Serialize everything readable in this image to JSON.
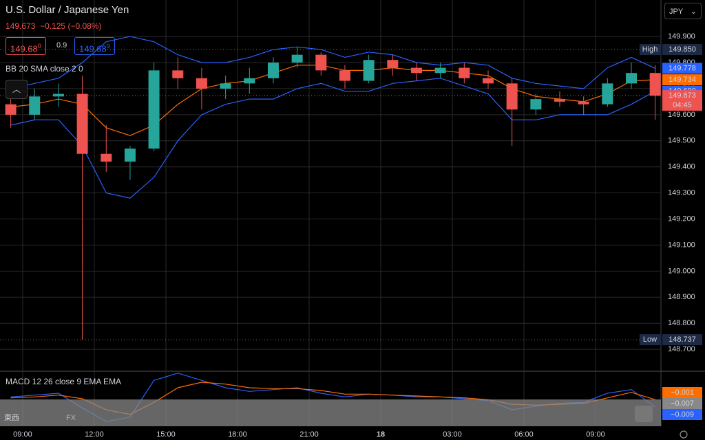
{
  "chart_data": {
    "type": "candlestick",
    "title": "U.S. Dollar / Japanese Yen",
    "quote": {
      "last": "149.673",
      "change": "−0.125",
      "change_pct": "(−0.08%)"
    },
    "sell": {
      "price": "149.68",
      "pip": "0"
    },
    "spread": "0.9",
    "buy": {
      "price": "149.68",
      "pip": "9"
    },
    "currency": "JPY",
    "countdown": "04:45",
    "up_color": "#26a69a",
    "down_color": "#ef5350",
    "grid": true,
    "xlim": [
      -0.95,
      26.74
    ],
    "xticks": [
      {
        "value": 0,
        "label": "09:00"
      },
      {
        "value": 3,
        "label": "12:00"
      },
      {
        "value": 6,
        "label": "15:00"
      },
      {
        "value": 9,
        "label": "18:00"
      },
      {
        "value": 12,
        "label": "21:00"
      },
      {
        "value": 15,
        "label": "18"
      },
      {
        "value": 18,
        "label": "03:00"
      },
      {
        "value": 21,
        "label": "06:00"
      },
      {
        "value": 24,
        "label": "09:00"
      }
    ],
    "ylim": [
      148.616,
      150.04
    ],
    "yticks": [
      {
        "value": 149.9,
        "label": "149.900"
      },
      {
        "value": 149.8,
        "label": "149.800"
      },
      {
        "value": 149.7,
        "label": "149.700"
      },
      {
        "value": 149.6,
        "label": "149.600"
      },
      {
        "value": 149.5,
        "label": "149.500"
      },
      {
        "value": 149.4,
        "label": "149.400"
      },
      {
        "value": 149.3,
        "label": "149.300"
      },
      {
        "value": 149.2,
        "label": "149.200"
      },
      {
        "value": 149.1,
        "label": "149.100"
      },
      {
        "value": 149.0,
        "label": "149.000"
      },
      {
        "value": 148.9,
        "label": "148.900"
      },
      {
        "value": 148.8,
        "label": "148.800"
      },
      {
        "value": 148.7,
        "label": "148.700"
      }
    ],
    "candles": {
      "x": [
        -0.5,
        0.5,
        1.5,
        2.5,
        3.5,
        4.5,
        5.5,
        6.5,
        7.5,
        8.5,
        9.5,
        10.5,
        11.5,
        12.5,
        13.5,
        14.5,
        15.5,
        16.5,
        17.5,
        18.5,
        19.5,
        20.5,
        21.5,
        22.5,
        23.5,
        24.5,
        25.5,
        26.5
      ],
      "open": [
        149.64,
        149.6,
        149.67,
        149.68,
        149.45,
        149.42,
        149.47,
        149.77,
        149.74,
        149.7,
        149.72,
        149.74,
        149.8,
        149.83,
        149.77,
        149.73,
        149.81,
        149.78,
        149.76,
        149.78,
        149.74,
        149.72,
        149.62,
        149.66,
        149.65,
        149.64,
        149.72,
        149.76
      ],
      "high": [
        149.66,
        149.7,
        149.72,
        149.75,
        149.56,
        149.48,
        149.8,
        149.82,
        149.78,
        149.75,
        149.78,
        149.82,
        149.86,
        149.84,
        149.79,
        149.83,
        149.83,
        149.8,
        149.8,
        149.8,
        149.77,
        149.74,
        149.68,
        149.69,
        149.67,
        149.74,
        149.8,
        149.79
      ],
      "low": [
        149.55,
        149.58,
        149.63,
        148.737,
        149.38,
        149.35,
        149.46,
        149.7,
        149.62,
        149.66,
        149.68,
        149.72,
        149.78,
        149.75,
        149.7,
        149.72,
        149.75,
        149.73,
        149.74,
        149.72,
        149.7,
        149.48,
        149.6,
        149.63,
        149.6,
        149.63,
        149.7,
        149.58
      ],
      "close": [
        149.6,
        149.67,
        149.68,
        149.45,
        149.42,
        149.47,
        149.77,
        149.74,
        149.7,
        149.72,
        149.74,
        149.8,
        149.83,
        149.77,
        149.73,
        149.81,
        149.78,
        149.76,
        149.78,
        149.74,
        149.72,
        149.62,
        149.66,
        149.65,
        149.64,
        149.72,
        149.76,
        149.673
      ]
    },
    "bollinger": {
      "name": "BB 20 SMA close 2 0",
      "upper_color": "#2962ff",
      "middle_color": "#ff6d00",
      "lower_color": "#2962ff",
      "upper": [
        149.7,
        149.72,
        149.74,
        149.8,
        149.88,
        149.9,
        149.88,
        149.83,
        149.8,
        149.8,
        149.82,
        149.85,
        149.86,
        149.85,
        149.82,
        149.84,
        149.83,
        149.8,
        149.79,
        149.8,
        149.79,
        149.74,
        149.72,
        149.71,
        149.7,
        149.78,
        149.82,
        149.778
      ],
      "middle": [
        149.63,
        149.64,
        149.66,
        149.64,
        149.55,
        149.52,
        149.56,
        149.64,
        149.7,
        149.72,
        149.73,
        149.76,
        149.79,
        149.79,
        149.77,
        149.77,
        149.78,
        149.77,
        149.77,
        149.76,
        149.75,
        149.7,
        149.67,
        149.66,
        149.65,
        149.68,
        149.73,
        149.734
      ],
      "lower": [
        149.56,
        149.58,
        149.58,
        149.48,
        149.3,
        149.28,
        149.36,
        149.5,
        149.6,
        149.64,
        149.66,
        149.66,
        149.7,
        149.72,
        149.69,
        149.69,
        149.72,
        149.73,
        149.74,
        149.71,
        149.68,
        149.58,
        149.58,
        149.6,
        149.6,
        149.6,
        149.64,
        149.69
      ],
      "last_labels": [
        {
          "value": 149.778,
          "label": "149.778"
        },
        {
          "value": 149.734,
          "label": "149.734"
        },
        {
          "value": 149.69,
          "label": "149.690"
        }
      ]
    },
    "last_price": {
      "value": 149.673,
      "label": "149.673"
    },
    "high": {
      "name": "High",
      "value": 149.85,
      "label": "149.850"
    },
    "low": {
      "name": "Low",
      "value": 148.737,
      "label": "148.737"
    },
    "macd": {
      "name": "MACD 12 26 close 9 EMA EMA",
      "ylim": [
        -0.03,
        0.03
      ],
      "macd_color": "#2962ff",
      "signal_color": "#ff6d00",
      "macd": [
        0.002,
        0.004,
        0.006,
        -0.01,
        -0.025,
        -0.02,
        0.02,
        0.028,
        0.02,
        0.012,
        0.008,
        0.01,
        0.012,
        0.006,
        0.002,
        0.005,
        0.004,
        0.002,
        0.002,
        0.0,
        -0.002,
        -0.012,
        -0.008,
        -0.005,
        -0.004,
        0.006,
        0.01,
        -0.009
      ],
      "signal": [
        0.001,
        0.002,
        0.004,
        0.0,
        -0.012,
        -0.017,
        -0.004,
        0.012,
        0.018,
        0.016,
        0.012,
        0.011,
        0.011,
        0.009,
        0.005,
        0.005,
        0.004,
        0.003,
        0.002,
        0.001,
        -0.001,
        -0.006,
        -0.007,
        -0.006,
        -0.005,
        0.001,
        0.007,
        -0.001
      ],
      "last_labels": [
        {
          "value": -0.001,
          "label": "−0.001",
          "color": "#ff6d00"
        },
        {
          "value": -0.007,
          "label": "−0.007",
          "color": "#888888"
        },
        {
          "value": -0.009,
          "label": "−0.009",
          "color": "#2962ff"
        }
      ]
    },
    "watermark": {
      "left": "東西",
      "right": "FX"
    }
  }
}
